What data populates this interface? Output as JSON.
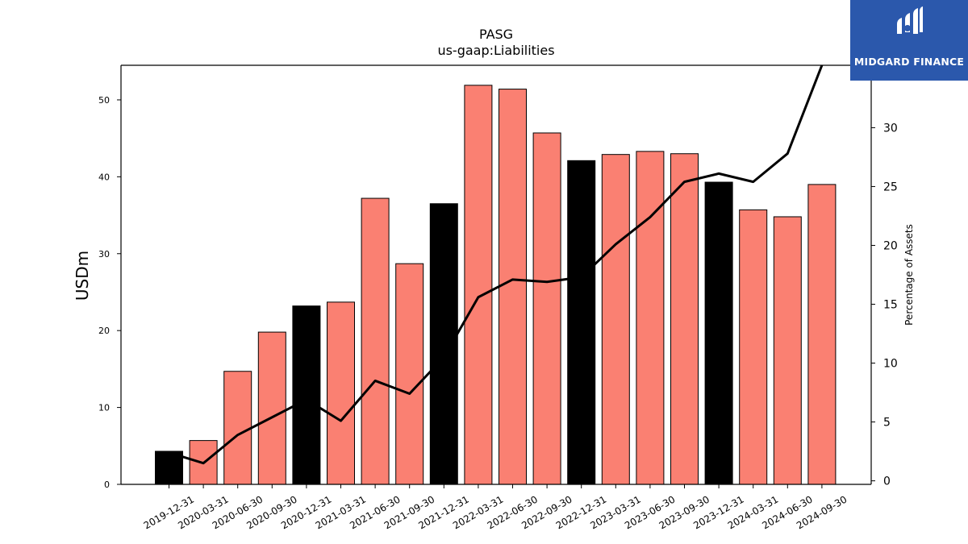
{
  "chart_data": {
    "type": "bar",
    "title": "PASG",
    "subtitle": "us-gaap:Liabilities",
    "ylabel": "USDm",
    "y2label": "Percentage of Assets",
    "ylim": [
      0,
      54.5
    ],
    "y2lim": [
      -0.3,
      35.3
    ],
    "yticks": [
      0,
      10,
      20,
      30,
      40,
      50
    ],
    "y2ticks": [
      0,
      5,
      10,
      15,
      20,
      25,
      30
    ],
    "categories": [
      "2019-12-31",
      "2020-03-31",
      "2020-06-30",
      "2020-09-30",
      "2020-12-31",
      "2021-03-31",
      "2021-06-30",
      "2021-09-30",
      "2021-12-31",
      "2022-03-31",
      "2022-06-30",
      "2022-09-30",
      "2022-12-31",
      "2023-03-31",
      "2023-06-30",
      "2023-09-30",
      "2023-12-31",
      "2024-03-31",
      "2024-06-30",
      "2024-09-30"
    ],
    "series": [
      {
        "kind": "bar",
        "axis": "left",
        "values": [
          4.3,
          5.7,
          14.7,
          19.8,
          23.2,
          23.7,
          37.2,
          28.7,
          36.5,
          51.9,
          51.4,
          45.7,
          42.1,
          42.9,
          43.3,
          43.0,
          39.3,
          35.7,
          34.8,
          39.0
        ],
        "highlight": [
          true,
          false,
          false,
          false,
          true,
          false,
          false,
          false,
          true,
          false,
          false,
          false,
          true,
          false,
          false,
          false,
          true,
          false,
          false,
          false
        ]
      },
      {
        "kind": "line",
        "axis": "right",
        "values": [
          2.4,
          1.5,
          3.9,
          5.4,
          6.9,
          5.1,
          8.5,
          7.4,
          10.5,
          15.6,
          17.1,
          16.9,
          17.3,
          20.1,
          22.4,
          25.4,
          26.1,
          25.4,
          27.8,
          35.3
        ]
      }
    ],
    "colors": {
      "bar": "#fa8072",
      "bar_highlight": "#000000",
      "line": "#000000",
      "edge": "#000000"
    },
    "grid": false,
    "legend": "none"
  },
  "logo": {
    "text": "MIDGARD FINANCE",
    "background": "#2b58ac",
    "foreground": "#ffffff"
  }
}
